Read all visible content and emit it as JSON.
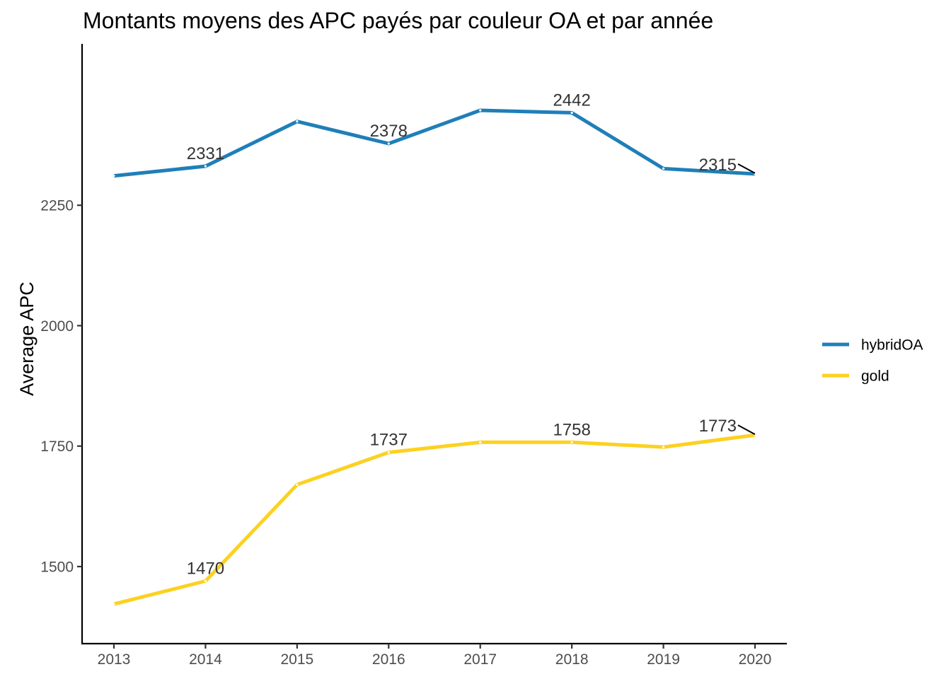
{
  "chart_data": {
    "type": "line",
    "title": "Montants moyens des APC payés par couleur OA et par année",
    "xlabel": "",
    "ylabel": "Average APC",
    "x": [
      2013,
      2014,
      2015,
      2016,
      2017,
      2018,
      2019,
      2020
    ],
    "x_tick_labels": [
      "2013",
      "2014",
      "2015",
      "2016",
      "2017",
      "2018",
      "2019",
      "2020"
    ],
    "y_ticks": [
      1500,
      1750,
      2000,
      2250
    ],
    "y_tick_labels": [
      "1500",
      "1750",
      "2000",
      "2250"
    ],
    "ylim": [
      1340,
      2585
    ],
    "grid": false,
    "legend_position": "right",
    "series": [
      {
        "name": "hybridOA",
        "color": "#1f7fb8",
        "values": [
          2311,
          2331,
          2424,
          2378,
          2447,
          2442,
          2326,
          2315
        ],
        "data_labels": [
          "",
          "2331",
          "",
          "2378",
          "",
          "2442",
          "",
          "2315"
        ]
      },
      {
        "name": "gold",
        "color": "#fcd120",
        "values": [
          1422,
          1470,
          1670,
          1737,
          1758,
          1758,
          1748,
          1773
        ],
        "data_labels": [
          "",
          "1470",
          "",
          "1737",
          "",
          "1758",
          "",
          "1773"
        ]
      }
    ]
  }
}
